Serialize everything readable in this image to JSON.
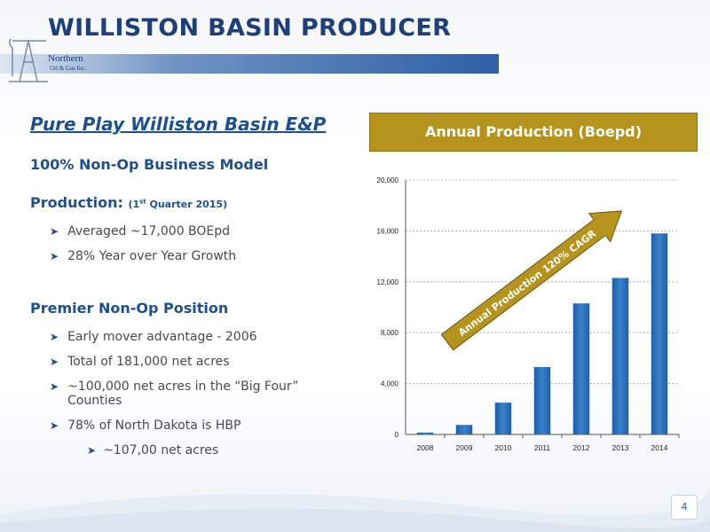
{
  "slide": {
    "title": "WILLISTON BASIN PRODUCER",
    "logo_line1": "Northern",
    "logo_line2": "Oil & Gas Inc.",
    "subhead": "Pure Play Williston Basin E&P",
    "business_model": "100% Non-Op Business Model",
    "production_label": "Production:",
    "production_paren_open": "(1",
    "production_paren_sup": "st",
    "production_paren_rest": " Quarter 2015)",
    "production_bullets": [
      "Averaged ~17,000 BOEpd",
      "28% Year over Year Growth"
    ],
    "position_heading": "Premier Non-Op Position",
    "position_bullets": [
      "Early mover advantage - 2006",
      "Total of 181,000 net acres",
      "~100,000 net acres in the “Big Four” Counties",
      "78% of North Dakota is HBP"
    ],
    "sub_bullet": "~107,00 net acres",
    "page_number": "4"
  },
  "chart_data": {
    "type": "bar",
    "title": "Annual Production (Boepd)",
    "categories": [
      "2008",
      "2009",
      "2010",
      "2011",
      "2012",
      "2013",
      "2014"
    ],
    "values": [
      150,
      750,
      2500,
      5300,
      10300,
      12300,
      15800
    ],
    "yticks": [
      "0",
      "4,000",
      "8,000",
      "12,000",
      "16,000",
      "20,000"
    ],
    "ylim": [
      0,
      20000
    ],
    "annotation": "Annual Production 120% CAGR",
    "bar_color": "#2d6fb8",
    "arrow_color": "#b5931d",
    "grid": true
  }
}
